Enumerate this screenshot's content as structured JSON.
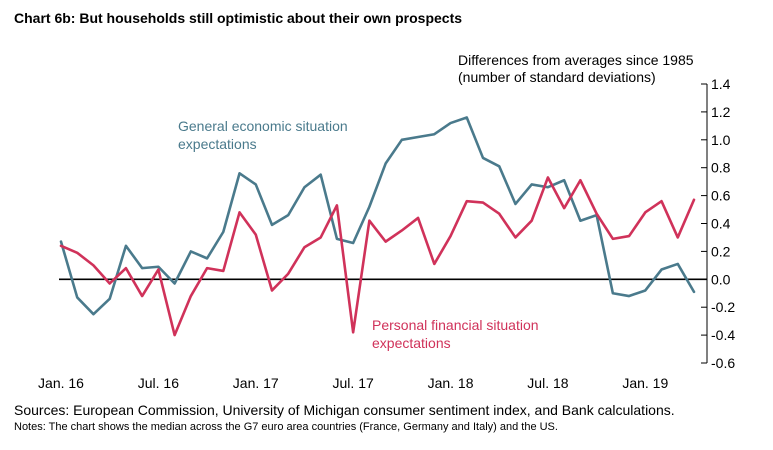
{
  "chart_data": {
    "type": "line",
    "title": "Chart 6b:  But households still optimistic about their own prospects",
    "units_line1": "Differences from averages since 1985",
    "units_line2": "(number of standard deviations)",
    "ylim": [
      -0.6,
      1.4
    ],
    "y_ticks": [
      -0.6,
      -0.4,
      -0.2,
      0.0,
      0.2,
      0.4,
      0.6,
      0.8,
      1.0,
      1.2,
      1.4
    ],
    "y_tick_labels": [
      "-0.6",
      "-0.4",
      "-0.2",
      "0.0",
      "0.2",
      "0.4",
      "0.6",
      "0.8",
      "1.0",
      "1.2",
      "1.4"
    ],
    "x_tick_labels": [
      "Jan. 16",
      "Jul. 16",
      "Jan. 17",
      "Jul. 17",
      "Jan. 18",
      "Jul. 18",
      "Jan. 19"
    ],
    "x_tick_indices": [
      0,
      6,
      12,
      18,
      24,
      30,
      36
    ],
    "grid": false,
    "zero_line": true,
    "series": [
      {
        "name": "General economic situation expectations",
        "label_lines": [
          "General economic situation",
          "expectations"
        ],
        "color": "#4a7a8c",
        "values": [
          0.27,
          -0.13,
          -0.25,
          -0.14,
          0.24,
          0.08,
          0.09,
          -0.03,
          0.2,
          0.15,
          0.34,
          0.76,
          0.68,
          0.39,
          0.46,
          0.66,
          0.75,
          0.29,
          0.26,
          0.52,
          0.83,
          1.0,
          1.02,
          1.04,
          1.12,
          1.16,
          0.87,
          0.81,
          0.54,
          0.68,
          0.66,
          0.71,
          0.42,
          0.46,
          -0.1,
          -0.12,
          -0.08,
          0.07,
          0.11,
          -0.09
        ]
      },
      {
        "name": "Personal financial situation expectations",
        "label_lines": [
          "Personal financial situation",
          "expectations"
        ],
        "color": "#d0325a",
        "values": [
          0.24,
          0.19,
          0.1,
          -0.03,
          0.08,
          -0.12,
          0.07,
          -0.4,
          -0.12,
          0.08,
          0.06,
          0.48,
          0.32,
          -0.08,
          0.04,
          0.23,
          0.3,
          0.53,
          -0.38,
          0.42,
          0.27,
          0.35,
          0.44,
          0.11,
          0.31,
          0.56,
          0.55,
          0.47,
          0.3,
          0.42,
          0.73,
          0.51,
          0.71,
          0.47,
          0.29,
          0.31,
          0.48,
          0.56,
          0.3,
          0.57
        ]
      }
    ]
  },
  "sources": "Sources:  European Commission, University of Michigan consumer sentiment index, and Bank calculations.",
  "notes": "Notes:  The chart shows the median across the G7 euro area countries (France, Germany and Italy) and the US."
}
